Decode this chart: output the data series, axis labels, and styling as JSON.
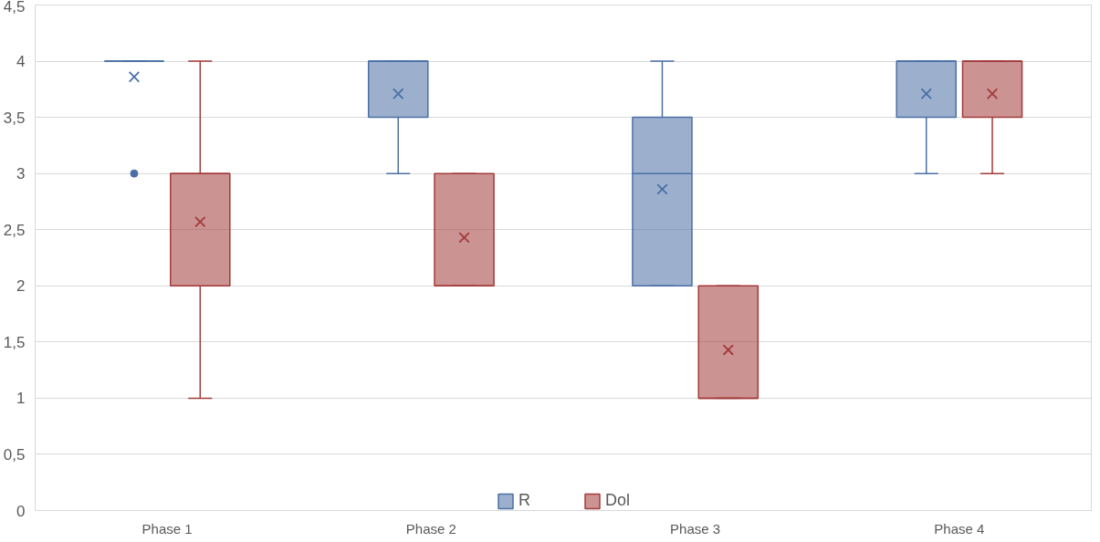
{
  "chart_data": {
    "type": "box",
    "categories": [
      "Phase 1",
      "Phase 2",
      "Phase 3",
      "Phase 4"
    ],
    "series": [
      {
        "name": "R",
        "color": "#4a6fa5",
        "boxes": [
          {
            "low": 4,
            "q1": 4,
            "median": 4,
            "q3": 4,
            "high": 4,
            "mean": 3.86,
            "outliers": [
              3
            ]
          },
          {
            "low": 3,
            "q1": 3.5,
            "median": 4,
            "q3": 4,
            "high": 4,
            "mean": 3.71
          },
          {
            "low": 2,
            "q1": 2,
            "median": 3,
            "q3": 3.5,
            "high": 4,
            "mean": 2.86
          },
          {
            "low": 3,
            "q1": 3.5,
            "median": 4,
            "q3": 4,
            "high": 4,
            "mean": 3.71
          }
        ]
      },
      {
        "name": "Dol",
        "color": "#a33a3a",
        "boxes": [
          {
            "low": 1,
            "q1": 2,
            "median": 3,
            "q3": 3,
            "high": 4,
            "mean": 2.57
          },
          {
            "low": 2,
            "q1": 2,
            "median": 2,
            "q3": 3,
            "high": 3,
            "mean": 2.43
          },
          {
            "low": 1,
            "q1": 1,
            "median": 1,
            "q3": 2,
            "high": 2,
            "mean": 1.43
          },
          {
            "low": 3,
            "q1": 3.5,
            "median": 4,
            "q3": 4,
            "high": 4,
            "mean": 3.71
          }
        ]
      }
    ],
    "ylim": [
      0,
      4.5
    ],
    "yticks": [
      0,
      {
        "value": 0.5,
        "label": "0,5"
      },
      1,
      {
        "value": 1.5,
        "label": "1,5"
      },
      2,
      {
        "value": 2.5,
        "label": "2,5"
      },
      3,
      {
        "value": 3.5,
        "label": "3,5"
      },
      4,
      {
        "value": 4.5,
        "label": "4,5"
      }
    ],
    "grid": "y",
    "legend": "bottom"
  }
}
